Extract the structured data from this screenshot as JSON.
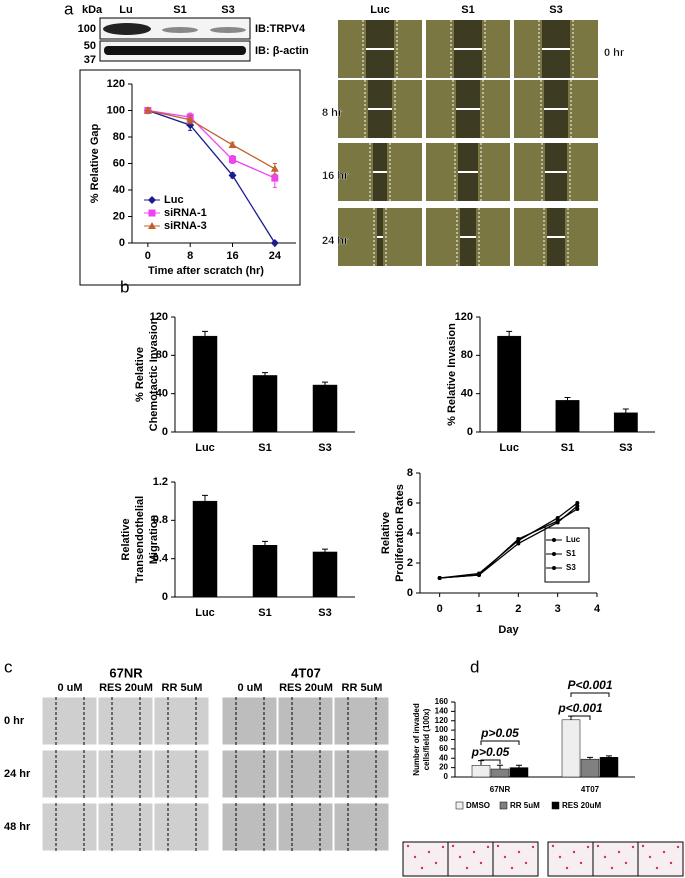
{
  "panel_labels": [
    "a",
    "b",
    "c",
    "d"
  ],
  "western_blot": {
    "unit": "kDa",
    "lanes": [
      "Lu",
      "S1",
      "S3"
    ],
    "markers": [
      100,
      50,
      37
    ],
    "probes": [
      "IB:TRPV4",
      "IB: β-actin"
    ]
  },
  "scratch_assay": {
    "columns": [
      "Luc",
      "S1",
      "S3"
    ],
    "rows": [
      "0 hr",
      "8 hr",
      "16 hr",
      "24 hr"
    ]
  },
  "panel_c": {
    "groups": [
      "67NR",
      "4T07"
    ],
    "columns": [
      "0 uM",
      "RES 20uM",
      "RR 5uM"
    ],
    "rows": [
      "0 hr",
      "24 hr",
      "48 hr"
    ]
  },
  "chart_data": [
    {
      "type": "line",
      "ylabel": [
        "% Relative Gap"
      ],
      "xlabel": "Time after scratch (hr)",
      "x": [
        0,
        8,
        16,
        24
      ],
      "xlim": [
        -3,
        28
      ],
      "xticks": [
        0,
        8,
        16,
        24
      ],
      "ylim": [
        0,
        120
      ],
      "yticks": [
        0,
        20,
        40,
        60,
        80,
        100,
        120
      ],
      "legend": "lower left",
      "grid": false,
      "series": [
        {
          "name": "Luc",
          "color": "#1c1c8c",
          "marker": "diamond",
          "values": [
            100,
            89,
            51,
            0
          ],
          "errors": [
            2,
            4,
            2,
            0
          ]
        },
        {
          "name": "siRNA-1",
          "color": "#ee44ee",
          "marker": "square",
          "values": [
            100,
            95,
            63,
            49
          ],
          "errors": [
            2,
            3,
            3,
            7
          ]
        },
        {
          "name": "siRNA-3",
          "color": "#c0622c",
          "marker": "triangle",
          "values": [
            100,
            93,
            74,
            56
          ],
          "errors": [
            2,
            3,
            2,
            4
          ]
        }
      ]
    },
    {
      "type": "bar",
      "ylabel": [
        "% Relative",
        "Chemotactic Invasion"
      ],
      "categories": [
        "Luc",
        "S1",
        "S3"
      ],
      "values": [
        100,
        59,
        49
      ],
      "errors": [
        5,
        3,
        3
      ],
      "color": "#000000",
      "ylim": [
        0,
        120
      ],
      "yticks": [
        0,
        40,
        80,
        120
      ],
      "grid": false
    },
    {
      "type": "bar",
      "ylabel": [
        "% Relative Invasion"
      ],
      "categories": [
        "Luc",
        "S1",
        "S3"
      ],
      "values": [
        100,
        33,
        20
      ],
      "errors": [
        5,
        3,
        4
      ],
      "color": "#000000",
      "ylim": [
        0,
        120
      ],
      "yticks": [
        0,
        40,
        80,
        120
      ],
      "grid": false
    },
    {
      "type": "bar",
      "ylabel": [
        "Relative",
        "Transendothelial",
        "Migration"
      ],
      "categories": [
        "Luc",
        "S1",
        "S3"
      ],
      "values": [
        1.0,
        0.54,
        0.47
      ],
      "errors": [
        0.06,
        0.04,
        0.03
      ],
      "color": "#000000",
      "ylim": [
        0,
        1.2
      ],
      "yticks": [
        0,
        0.4,
        0.8,
        1.2
      ],
      "grid": false
    },
    {
      "type": "line",
      "ylabel": [
        "Relative",
        "Proliferation Rates"
      ],
      "xlabel": "Day",
      "x": [
        0,
        1,
        2,
        3,
        3.5
      ],
      "xlim": [
        -0.5,
        4
      ],
      "xticks": [
        0,
        1,
        2,
        3,
        4
      ],
      "ylim": [
        0,
        8
      ],
      "yticks": [
        0,
        2,
        4,
        6,
        8
      ],
      "legend": "lower right",
      "grid": false,
      "series": [
        {
          "name": "Luc",
          "color": "#000000",
          "marker": "dot",
          "values": [
            1,
            1.3,
            3.5,
            5,
            6
          ]
        },
        {
          "name": "S1",
          "color": "#000000",
          "marker": "dot",
          "values": [
            1,
            1.2,
            3.6,
            4.8,
            5.6
          ]
        },
        {
          "name": "S3",
          "color": "#000000",
          "marker": "dot",
          "values": [
            1,
            1.2,
            3.3,
            4.7,
            5.8
          ]
        }
      ]
    },
    {
      "type": "bar",
      "ylabel": [
        "Number of invaded",
        "cells/field (100x)"
      ],
      "categories": [
        "67NR",
        "4T07"
      ],
      "ylim": [
        0,
        160
      ],
      "yticks": [
        0,
        20,
        40,
        60,
        80,
        100,
        120,
        140,
        160
      ],
      "legend": "bottom",
      "grid": false,
      "annotations": [
        "P<0.001",
        "p<0.001",
        "p>0.05",
        "p>0.05"
      ],
      "series": [
        {
          "name": "DMSO",
          "color": "#eeeeee",
          "values": [
            25,
            122
          ],
          "errors": [
            10,
            8
          ]
        },
        {
          "name": "RR 5uM",
          "color": "#808080",
          "values": [
            17,
            38
          ],
          "errors": [
            8,
            4
          ]
        },
        {
          "name": "RES 20uM",
          "color": "#000000",
          "values": [
            20,
            42
          ],
          "errors": [
            5,
            3
          ]
        }
      ]
    }
  ]
}
